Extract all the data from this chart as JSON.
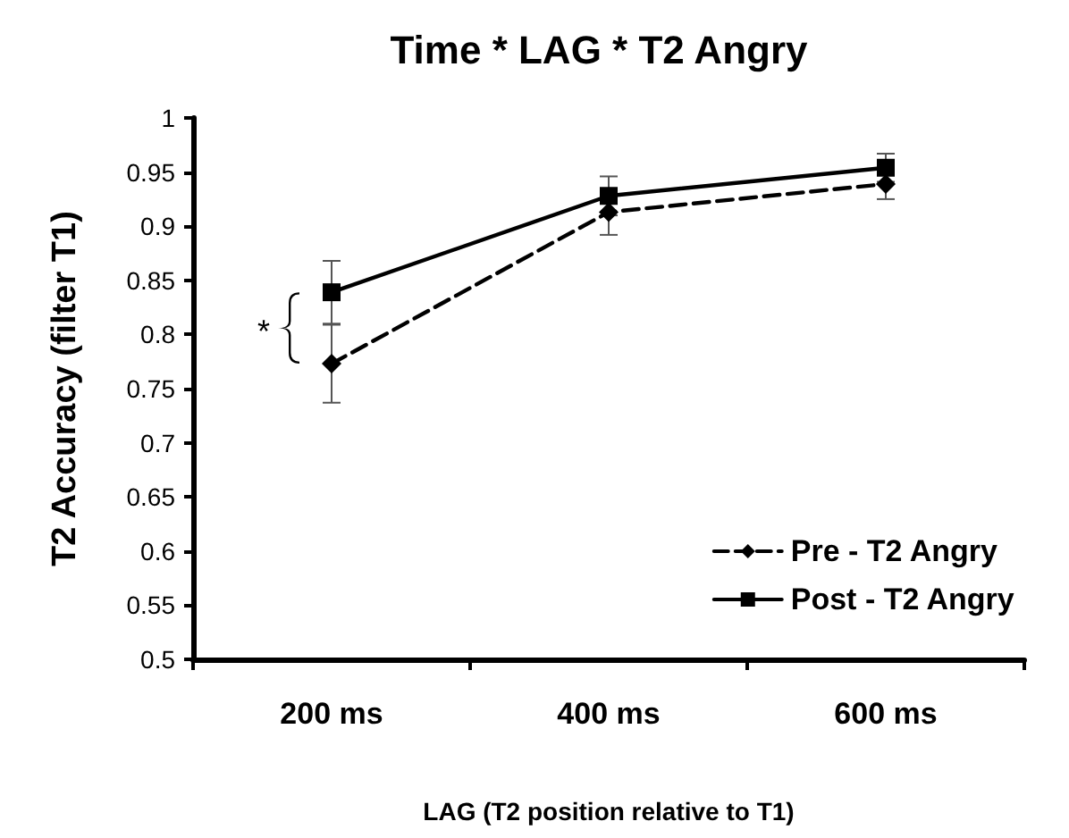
{
  "chart_data": {
    "type": "line",
    "title": "Time * LAG * T2 Angry",
    "xlabel": "LAG (T2 position relative to T1)",
    "ylabel": "T2 Accuracy (filter T1)",
    "categories": [
      "200 ms",
      "400 ms",
      "600 ms"
    ],
    "series": [
      {
        "name": "Pre - T2 Angry",
        "color": "#000000",
        "values": [
          0.773,
          0.913,
          0.939
        ],
        "errors": [
          0.036,
          0.021,
          0.014
        ],
        "marker": "diamond",
        "line_style": "dashed"
      },
      {
        "name": "Post - T2 Angry",
        "color": "#000000",
        "values": [
          0.839,
          0.928,
          0.954
        ],
        "errors": [
          0.029,
          0.018,
          0.013
        ],
        "marker": "square",
        "line_style": "solid"
      }
    ],
    "annotations": [
      "*"
    ],
    "ylim": [
      0.5,
      1
    ],
    "yticks": [
      0.5,
      0.55,
      0.6,
      0.65,
      0.7,
      0.75,
      0.8,
      0.85,
      0.9,
      0.95,
      1
    ],
    "grid": false,
    "legend": "bottom right"
  }
}
